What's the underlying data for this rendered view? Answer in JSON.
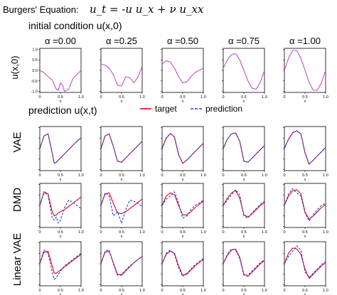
{
  "figure": {
    "title_text": "Burgers' Equation:",
    "equation": "u_t = -u u_x + ν u_xx",
    "section1_title": "initial condition u(x,0)",
    "section2_title": "prediction u(x,t)",
    "initial_ylabel": "u(x,0)",
    "legend": {
      "target": "target",
      "prediction": "prediction"
    },
    "colors": {
      "initial": "#c050c8",
      "target": "#e8001c",
      "prediction": "#1f3fd6"
    }
  },
  "chart_data": [
    {
      "type": "line",
      "panel": "initial condition",
      "title": "α =0.00",
      "ylim": [
        -1.0,
        1.0
      ],
      "yticks": [
        "1.0",
        "0.5",
        "0.0",
        "-0.5",
        "-1.0"
      ],
      "xticks": [
        "0",
        "0.5",
        "1.0"
      ],
      "xlabel": "x",
      "x": [
        0,
        0.1,
        0.2,
        0.3,
        0.4,
        0.45,
        0.5,
        0.55,
        0.6,
        0.7,
        0.8,
        0.9,
        1.0
      ],
      "series": [
        {
          "values": [
            0.0,
            -0.1,
            -0.3,
            -0.45,
            -0.9,
            -0.95,
            -0.6,
            -0.7,
            -1.0,
            -0.9,
            -0.4,
            -0.2,
            0.0
          ]
        }
      ]
    },
    {
      "type": "line",
      "panel": "initial condition",
      "title": "α =0.25",
      "xticks": [
        "0",
        "0.5",
        "1.0"
      ],
      "xlabel": "x",
      "x": [
        0,
        0.1,
        0.2,
        0.3,
        0.4,
        0.5,
        0.6,
        0.7,
        0.8,
        0.9,
        1.0
      ],
      "series": [
        {
          "values": [
            0.3,
            0.25,
            0.1,
            -0.2,
            -0.7,
            -0.75,
            -0.3,
            -0.35,
            -0.6,
            -0.3,
            0.2
          ]
        }
      ]
    },
    {
      "type": "line",
      "panel": "initial condition",
      "title": "α =0.50",
      "xticks": [
        "0",
        "0.5",
        "1.0"
      ],
      "xlabel": "x",
      "x": [
        0,
        0.1,
        0.2,
        0.3,
        0.4,
        0.5,
        0.6,
        0.7,
        0.8,
        0.9,
        1.0
      ],
      "series": [
        {
          "values": [
            0.3,
            0.45,
            0.4,
            0.1,
            -0.3,
            -0.6,
            -0.55,
            -0.3,
            -0.1,
            0.0,
            0.1
          ]
        }
      ]
    },
    {
      "type": "line",
      "panel": "initial condition",
      "title": "α =0.75",
      "xticks": [
        "0",
        "0.5",
        "1.0"
      ],
      "xlabel": "x",
      "x": [
        0,
        0.1,
        0.2,
        0.3,
        0.4,
        0.5,
        0.6,
        0.7,
        0.8,
        0.9,
        1.0
      ],
      "series": [
        {
          "values": [
            0.1,
            0.5,
            0.75,
            0.8,
            0.5,
            0.0,
            -0.5,
            -0.85,
            -0.9,
            -0.55,
            0.0
          ]
        }
      ]
    },
    {
      "type": "line",
      "panel": "initial condition",
      "title": "α =1.00",
      "xticks": [
        "0",
        "0.5",
        "1.0"
      ],
      "xlabel": "x",
      "x": [
        0,
        0.1,
        0.2,
        0.3,
        0.4,
        0.5,
        0.6,
        0.7,
        0.8,
        0.9,
        1.0
      ],
      "series": [
        {
          "values": [
            0.0,
            0.58,
            0.95,
            0.95,
            0.58,
            0.0,
            -0.58,
            -0.95,
            -0.95,
            -0.58,
            0.0
          ]
        }
      ]
    },
    {
      "type": "line",
      "panel": "prediction",
      "row": "VAE",
      "column": "α =0.00",
      "xticks": [
        "0",
        "0.5",
        "1.0"
      ],
      "xlabel": "x",
      "x": [
        0,
        0.1,
        0.2,
        0.3,
        0.35,
        0.4,
        0.5,
        0.6,
        0.7,
        0.8,
        0.9,
        1.0
      ],
      "series": [
        {
          "name": "target",
          "values": [
            0.0,
            0.6,
            0.7,
            -0.2,
            -0.7,
            -0.65,
            -0.45,
            -0.25,
            -0.05,
            0.15,
            0.35,
            0.5
          ]
        },
        {
          "name": "prediction",
          "values": [
            0.0,
            0.6,
            0.7,
            -0.2,
            -0.7,
            -0.65,
            -0.45,
            -0.25,
            -0.05,
            0.15,
            0.35,
            0.5
          ]
        }
      ]
    },
    {
      "type": "line",
      "panel": "prediction",
      "row": "VAE",
      "column": "α =0.25",
      "xticks": [
        "0",
        "0.5",
        "1.0"
      ],
      "xlabel": "x",
      "x": [
        0,
        0.1,
        0.2,
        0.3,
        0.4,
        0.5,
        0.6,
        0.7,
        0.8,
        0.9,
        1.0
      ],
      "series": [
        {
          "name": "target",
          "values": [
            0.0,
            0.6,
            0.7,
            0.1,
            -0.6,
            -0.65,
            -0.45,
            -0.25,
            -0.05,
            0.15,
            0.35
          ]
        },
        {
          "name": "prediction",
          "values": [
            0.0,
            0.6,
            0.7,
            0.1,
            -0.6,
            -0.65,
            -0.45,
            -0.25,
            -0.05,
            0.15,
            0.35
          ]
        }
      ]
    },
    {
      "type": "line",
      "panel": "prediction",
      "row": "VAE",
      "column": "α =0.50",
      "xticks": [
        "0",
        "0.5",
        "1.0"
      ],
      "xlabel": "x",
      "x": [
        0,
        0.1,
        0.2,
        0.3,
        0.4,
        0.5,
        0.6,
        0.7,
        0.8,
        0.9,
        1.0
      ],
      "series": [
        {
          "name": "target",
          "values": [
            0.0,
            0.5,
            0.72,
            0.55,
            -0.3,
            -0.7,
            -0.55,
            -0.35,
            -0.15,
            0.05,
            0.25
          ]
        },
        {
          "name": "prediction",
          "values": [
            0.0,
            0.5,
            0.72,
            0.55,
            -0.3,
            -0.7,
            -0.55,
            -0.35,
            -0.15,
            0.05,
            0.25
          ]
        }
      ]
    },
    {
      "type": "line",
      "panel": "prediction",
      "row": "VAE",
      "column": "α =0.75",
      "xticks": [
        "0",
        "0.5",
        "1.0"
      ],
      "xlabel": "x",
      "x": [
        0,
        0.1,
        0.2,
        0.3,
        0.4,
        0.5,
        0.6,
        0.7,
        0.8,
        0.9,
        1.0
      ],
      "series": [
        {
          "name": "target",
          "values": [
            0.0,
            0.45,
            0.7,
            0.75,
            0.35,
            -0.6,
            -0.65,
            -0.45,
            -0.25,
            -0.05,
            0.15
          ]
        },
        {
          "name": "prediction",
          "values": [
            0.0,
            0.45,
            0.7,
            0.75,
            0.35,
            -0.6,
            -0.65,
            -0.45,
            -0.25,
            -0.05,
            0.15
          ]
        }
      ]
    },
    {
      "type": "line",
      "panel": "prediction",
      "row": "VAE",
      "column": "α =1.00",
      "xticks": [
        "0",
        "0.5",
        "1.0"
      ],
      "xlabel": "x",
      "x": [
        0,
        0.1,
        0.2,
        0.3,
        0.4,
        0.5,
        0.6,
        0.7,
        0.8,
        0.9,
        1.0
      ],
      "series": [
        {
          "name": "target",
          "values": [
            0.0,
            0.45,
            0.75,
            0.85,
            0.7,
            -0.2,
            -0.75,
            -0.55,
            -0.35,
            -0.15,
            0.05
          ]
        },
        {
          "name": "prediction",
          "values": [
            0.0,
            0.45,
            0.75,
            0.85,
            0.7,
            -0.2,
            -0.75,
            -0.55,
            -0.35,
            -0.15,
            0.05
          ]
        }
      ]
    },
    {
      "type": "line",
      "panel": "prediction",
      "row": "DMD",
      "column": "α =0.00",
      "xticks": [
        "0",
        "0.5",
        "1.0"
      ],
      "xlabel": "x",
      "x": [
        0,
        0.1,
        0.2,
        0.3,
        0.35,
        0.4,
        0.45,
        0.5,
        0.6,
        0.7,
        0.8,
        0.9,
        1.0
      ],
      "series": [
        {
          "name": "target",
          "values": [
            0.0,
            0.65,
            0.55,
            -0.3,
            -0.5,
            -0.45,
            -0.35,
            -0.3,
            -0.2,
            -0.05,
            0.1,
            0.25,
            0.4
          ]
        },
        {
          "name": "prediction",
          "values": [
            0.0,
            0.6,
            0.5,
            -0.6,
            -0.7,
            -0.55,
            -0.85,
            -0.7,
            -0.1,
            0.25,
            0.15,
            0.0,
            -0.15
          ]
        }
      ]
    },
    {
      "type": "line",
      "panel": "prediction",
      "row": "DMD",
      "column": "α =0.25",
      "xticks": [
        "0",
        "0.5",
        "1.0"
      ],
      "xlabel": "x",
      "x": [
        0,
        0.1,
        0.2,
        0.3,
        0.4,
        0.5,
        0.6,
        0.7,
        0.8,
        0.9,
        1.0
      ],
      "series": [
        {
          "name": "target",
          "values": [
            0.0,
            0.55,
            0.6,
            0.1,
            -0.35,
            -0.4,
            -0.3,
            -0.15,
            0.0,
            0.15,
            0.3
          ]
        },
        {
          "name": "prediction",
          "values": [
            0.0,
            0.6,
            0.45,
            -0.5,
            -0.3,
            -0.85,
            -0.2,
            0.25,
            0.2,
            0.1,
            -0.05
          ]
        }
      ]
    },
    {
      "type": "line",
      "panel": "prediction",
      "row": "DMD",
      "column": "α =0.50",
      "xticks": [
        "0",
        "0.5",
        "1.0"
      ],
      "xlabel": "x",
      "x": [
        0,
        0.1,
        0.2,
        0.3,
        0.4,
        0.5,
        0.6,
        0.7,
        0.8,
        0.9,
        1.0
      ],
      "series": [
        {
          "name": "target",
          "values": [
            0.0,
            0.45,
            0.6,
            0.5,
            0.0,
            -0.45,
            -0.45,
            -0.3,
            -0.1,
            0.05,
            0.2
          ]
        },
        {
          "name": "prediction",
          "values": [
            0.0,
            0.3,
            0.45,
            0.65,
            0.1,
            -0.6,
            -0.5,
            -0.2,
            0.0,
            0.1,
            0.25
          ]
        }
      ]
    },
    {
      "type": "line",
      "panel": "prediction",
      "row": "DMD",
      "column": "α =0.75",
      "xticks": [
        "0",
        "0.5",
        "1.0"
      ],
      "xlabel": "x",
      "x": [
        0,
        0.1,
        0.2,
        0.3,
        0.4,
        0.5,
        0.6,
        0.7,
        0.8,
        0.9,
        1.0
      ],
      "series": [
        {
          "name": "target",
          "values": [
            0.0,
            0.35,
            0.6,
            0.7,
            0.35,
            -0.45,
            -0.55,
            -0.4,
            -0.2,
            0.0,
            0.15
          ]
        },
        {
          "name": "prediction",
          "values": [
            0.0,
            0.25,
            0.5,
            0.75,
            0.5,
            -0.5,
            -0.6,
            -0.35,
            -0.15,
            0.05,
            0.2
          ]
        }
      ]
    },
    {
      "type": "line",
      "panel": "prediction",
      "row": "DMD",
      "column": "α =1.00",
      "xticks": [
        "0",
        "0.5",
        "1.0"
      ],
      "xlabel": "x",
      "x": [
        0,
        0.1,
        0.2,
        0.3,
        0.4,
        0.5,
        0.6,
        0.7,
        0.8,
        0.9,
        1.0
      ],
      "series": [
        {
          "name": "target",
          "values": [
            0.0,
            0.45,
            0.7,
            0.75,
            0.55,
            -0.3,
            -0.65,
            -0.5,
            -0.3,
            -0.1,
            0.05
          ]
        },
        {
          "name": "prediction",
          "values": [
            0.0,
            0.55,
            0.8,
            0.6,
            0.45,
            -0.35,
            -0.75,
            -0.45,
            -0.2,
            0.0,
            0.1
          ]
        }
      ]
    },
    {
      "type": "line",
      "panel": "prediction",
      "row": "Linear VAE",
      "column": "α =0.00",
      "xticks": [
        "0",
        "0.5",
        "1.0"
      ],
      "xlabel": "x",
      "x": [
        0,
        0.1,
        0.2,
        0.3,
        0.35,
        0.4,
        0.5,
        0.6,
        0.7,
        0.8,
        0.9,
        1.0
      ],
      "series": [
        {
          "name": "target",
          "values": [
            0.0,
            0.55,
            0.6,
            -0.1,
            -0.45,
            -0.45,
            -0.3,
            -0.15,
            0.0,
            0.15,
            0.3,
            0.45
          ]
        },
        {
          "name": "prediction",
          "values": [
            0.0,
            0.65,
            0.5,
            -0.4,
            -0.75,
            -0.65,
            -0.35,
            -0.1,
            0.05,
            0.2,
            0.35,
            0.5
          ]
        }
      ]
    },
    {
      "type": "line",
      "panel": "prediction",
      "row": "Linear VAE",
      "column": "α =0.25",
      "xticks": [
        "0",
        "0.5",
        "1.0"
      ],
      "xlabel": "x",
      "x": [
        0,
        0.1,
        0.2,
        0.3,
        0.4,
        0.5,
        0.6,
        0.7,
        0.8,
        0.9,
        1.0
      ],
      "series": [
        {
          "name": "target",
          "values": [
            0.0,
            0.55,
            0.6,
            0.05,
            -0.5,
            -0.55,
            -0.35,
            -0.15,
            0.05,
            0.2,
            0.35
          ]
        },
        {
          "name": "prediction",
          "values": [
            0.0,
            0.6,
            0.65,
            0.0,
            -0.55,
            -0.5,
            -0.3,
            -0.1,
            0.05,
            0.2,
            0.35
          ]
        }
      ]
    },
    {
      "type": "line",
      "panel": "prediction",
      "row": "Linear VAE",
      "column": "α =0.50",
      "xticks": [
        "0",
        "0.5",
        "1.0"
      ],
      "xlabel": "x",
      "x": [
        0,
        0.1,
        0.2,
        0.3,
        0.4,
        0.5,
        0.6,
        0.7,
        0.8,
        0.9,
        1.0
      ],
      "series": [
        {
          "name": "target",
          "values": [
            0.0,
            0.45,
            0.6,
            0.5,
            -0.1,
            -0.55,
            -0.5,
            -0.3,
            -0.1,
            0.05,
            0.2
          ]
        },
        {
          "name": "prediction",
          "values": [
            0.0,
            0.5,
            0.65,
            0.45,
            -0.2,
            -0.6,
            -0.45,
            -0.25,
            -0.05,
            0.1,
            0.25
          ]
        }
      ]
    },
    {
      "type": "line",
      "panel": "prediction",
      "row": "Linear VAE",
      "column": "α =0.75",
      "xticks": [
        "0",
        "0.5",
        "1.0"
      ],
      "xlabel": "x",
      "x": [
        0,
        0.1,
        0.2,
        0.3,
        0.4,
        0.5,
        0.6,
        0.7,
        0.8,
        0.9,
        1.0
      ],
      "series": [
        {
          "name": "target",
          "values": [
            0.0,
            0.4,
            0.65,
            0.7,
            0.3,
            -0.5,
            -0.6,
            -0.4,
            -0.2,
            0.0,
            0.15
          ]
        },
        {
          "name": "prediction",
          "values": [
            0.0,
            0.45,
            0.7,
            0.65,
            0.25,
            -0.55,
            -0.55,
            -0.35,
            -0.15,
            0.05,
            0.2
          ]
        }
      ]
    },
    {
      "type": "line",
      "panel": "prediction",
      "row": "Linear VAE",
      "column": "α =1.00",
      "xticks": [
        "0",
        "0.5",
        "1.0"
      ],
      "xlabel": "x",
      "x": [
        0,
        0.1,
        0.2,
        0.3,
        0.4,
        0.5,
        0.6,
        0.7,
        0.8,
        0.9,
        1.0
      ],
      "series": [
        {
          "name": "target",
          "values": [
            0.0,
            0.5,
            0.75,
            0.7,
            0.45,
            -0.25,
            -0.7,
            -0.5,
            -0.3,
            -0.1,
            0.05
          ]
        },
        {
          "name": "prediction",
          "values": [
            0.0,
            0.35,
            0.6,
            0.85,
            0.65,
            -0.4,
            -0.65,
            -0.45,
            -0.25,
            -0.05,
            0.1
          ]
        }
      ]
    }
  ]
}
